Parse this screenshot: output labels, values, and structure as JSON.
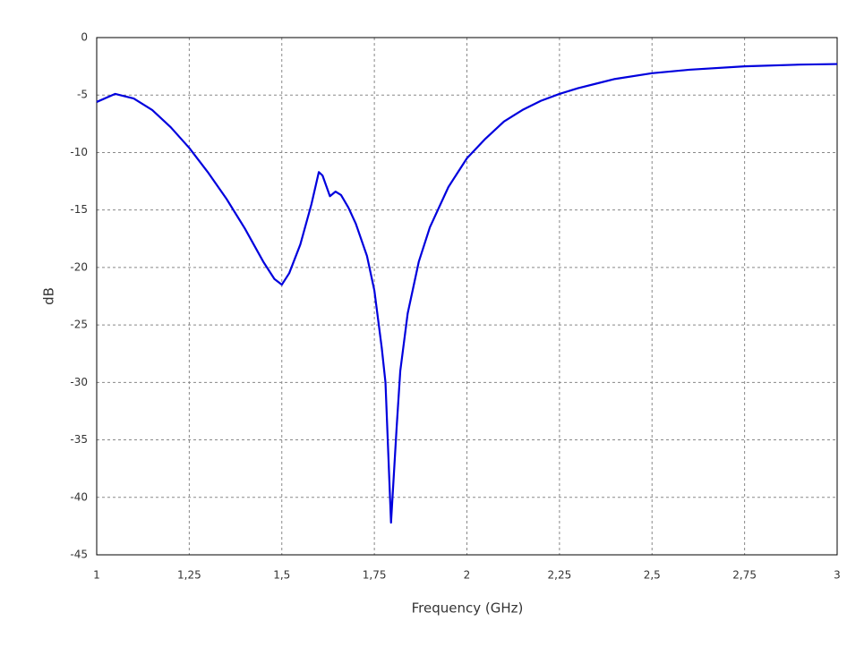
{
  "chart_data": {
    "type": "line",
    "xlabel": "Frequency (GHz)",
    "ylabel": "dB",
    "color": "#0000dd",
    "grid": true,
    "x": [
      1,
      1.05,
      1.1,
      1.15,
      1.2,
      1.25,
      1.3,
      1.35,
      1.4,
      1.45,
      1.48,
      1.5,
      1.52,
      1.55,
      1.58,
      1.6,
      1.61,
      1.63,
      1.645,
      1.66,
      1.68,
      1.7,
      1.73,
      1.75,
      1.77,
      1.78,
      1.795,
      1.81,
      1.82,
      1.84,
      1.87,
      1.9,
      1.95,
      2.0,
      2.05,
      2.1,
      2.15,
      2.2,
      2.25,
      2.3,
      2.35,
      2.4,
      2.5,
      2.6,
      2.75,
      2.9,
      3.0
    ],
    "values": [
      -5.6,
      -4.9,
      -5.3,
      -6.3,
      -7.8,
      -9.6,
      -11.7,
      -14.0,
      -16.6,
      -19.5,
      -21.0,
      -21.5,
      -20.5,
      -18.0,
      -14.5,
      -11.7,
      -12.0,
      -13.8,
      -13.4,
      -13.7,
      -14.8,
      -16.2,
      -19.0,
      -22.0,
      -27.0,
      -30.0,
      -42.2,
      -34.0,
      -29.0,
      -24.0,
      -19.5,
      -16.5,
      -13.0,
      -10.5,
      -8.8,
      -7.3,
      -6.3,
      -5.5,
      -4.9,
      -4.4,
      -4.0,
      -3.6,
      -3.1,
      -2.8,
      -2.5,
      -2.35,
      -2.3
    ],
    "xlim": [
      1,
      3
    ],
    "xticks": [
      1,
      {
        "value": 1.25,
        "label": "1,25"
      },
      {
        "value": 1.5,
        "label": "1,5"
      },
      {
        "value": 1.75,
        "label": "1,75"
      },
      2,
      {
        "value": 2.25,
        "label": "2,25"
      },
      {
        "value": 2.5,
        "label": "2,5"
      },
      {
        "value": 2.75,
        "label": "2,75"
      },
      3
    ],
    "ylim": [
      -45,
      0
    ],
    "yticks": [
      0,
      -5,
      -10,
      -15,
      -20,
      -25,
      -30,
      -35,
      -40,
      -45
    ]
  }
}
